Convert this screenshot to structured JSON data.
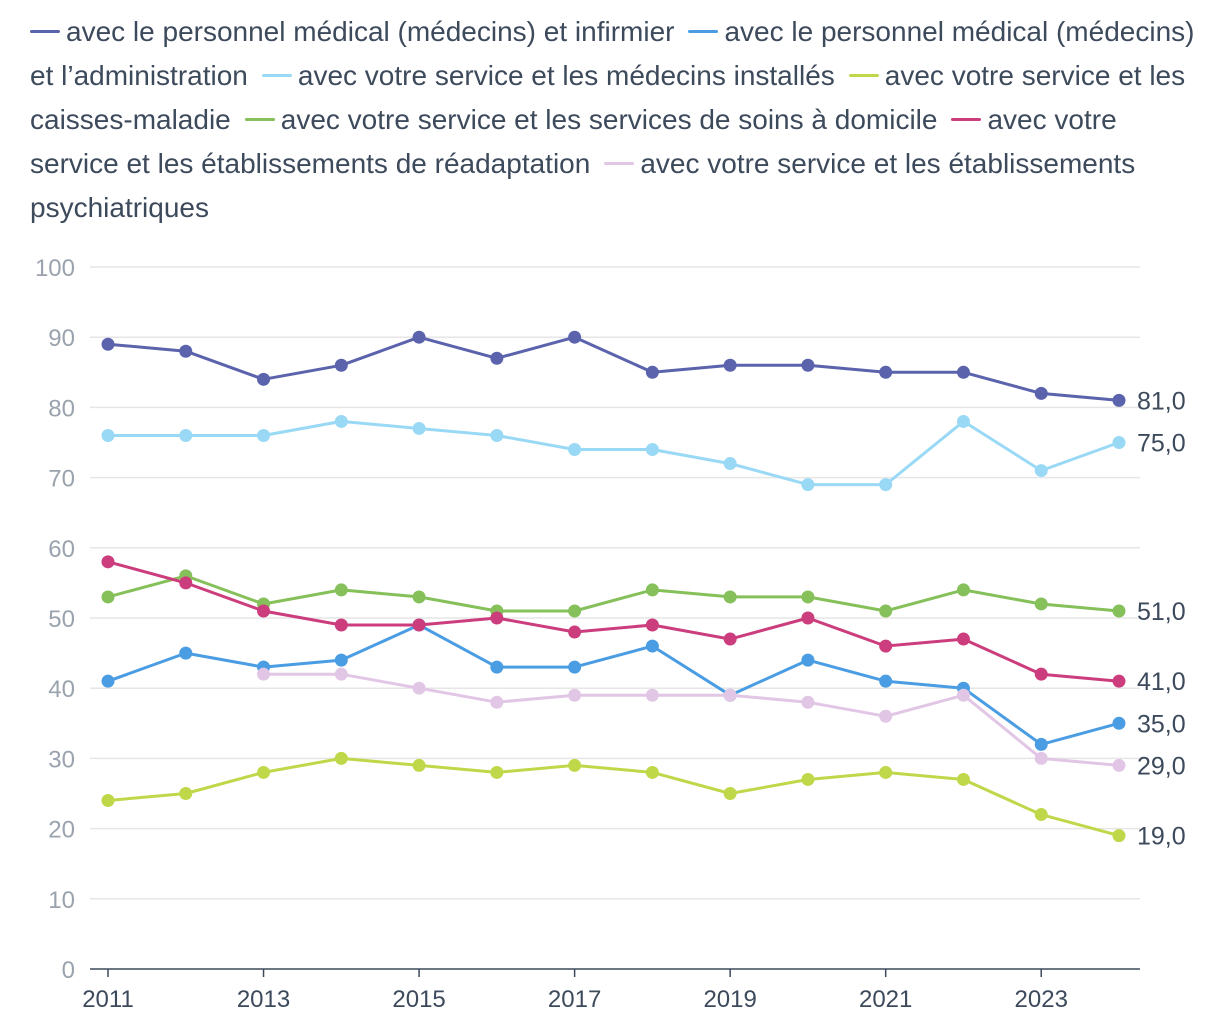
{
  "chart_data": {
    "type": "line",
    "title": "",
    "xlabel": "",
    "ylabel": "",
    "ylim": [
      0,
      100
    ],
    "yticks": [
      "0",
      "10",
      "20",
      "30",
      "40",
      "50",
      "60",
      "70",
      "80",
      "90",
      "100"
    ],
    "x": [
      2011,
      2012,
      2013,
      2014,
      2015,
      2016,
      2017,
      2018,
      2019,
      2020,
      2021,
      2022,
      2023,
      2024
    ],
    "xtick_labels": [
      "2011",
      "2013",
      "2015",
      "2017",
      "2019",
      "2021",
      "2023"
    ],
    "series": [
      {
        "name": "avec le personnel médical (médecins) et infirmier",
        "color": "#5b63ad",
        "values": [
          89,
          88,
          84,
          86,
          90,
          87,
          90,
          85,
          86,
          86,
          85,
          85,
          82,
          81
        ],
        "end_label": "81,0"
      },
      {
        "name": "avec le personnel médical (médecins) et l’administration",
        "color": "#4a9de3",
        "values": [
          41,
          45,
          43,
          44,
          49,
          43,
          43,
          46,
          39,
          44,
          41,
          40,
          32,
          35
        ],
        "end_label": "35,0"
      },
      {
        "name": "avec votre service et les médecins installés",
        "color": "#9ad9f5",
        "values": [
          76,
          76,
          76,
          78,
          77,
          76,
          74,
          74,
          72,
          69,
          69,
          78,
          71,
          75
        ],
        "end_label": "75,0"
      },
      {
        "name": "avec votre service et les caisses-maladie",
        "color": "#bfd84a",
        "values": [
          24,
          25,
          28,
          30,
          29,
          28,
          29,
          28,
          25,
          27,
          28,
          27,
          22,
          19
        ],
        "end_label": "19,0"
      },
      {
        "name": "avec votre service et les services de soins à domicile",
        "color": "#86c05a",
        "values": [
          53,
          56,
          52,
          54,
          53,
          51,
          51,
          54,
          53,
          53,
          51,
          54,
          52,
          51
        ],
        "end_label": "51,0"
      },
      {
        "name": "avec votre service et les établissements de réadaptation",
        "color": "#cc3d7d",
        "values": [
          58,
          55,
          51,
          49,
          49,
          50,
          48,
          49,
          47,
          50,
          46,
          47,
          42,
          41
        ],
        "end_label": "41,0"
      },
      {
        "name": "avec votre service et les établissements psychiatriques",
        "color": "#e2c6e6",
        "values": [
          null,
          null,
          42,
          42,
          40,
          38,
          39,
          39,
          39,
          38,
          36,
          39,
          30,
          29
        ],
        "end_label": "29,0"
      }
    ]
  }
}
